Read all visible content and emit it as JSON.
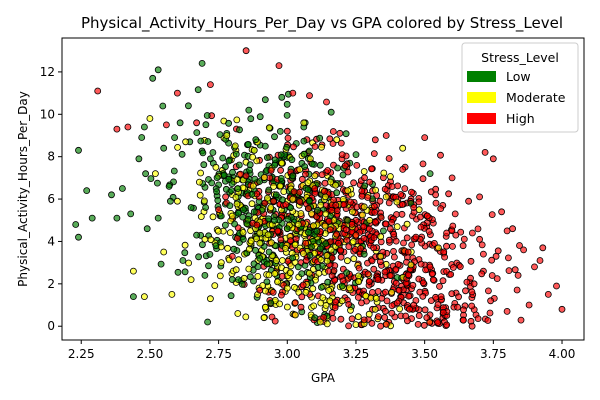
{
  "chart_data": {
    "type": "scatter",
    "title": "Physical_Activity_Hours_Per_Day vs GPA colored by Stress_Level",
    "xlabel": "GPA",
    "ylabel": "Physical_Activity_Hours_Per_Day",
    "xlim": [
      2.18,
      4.08
    ],
    "ylim": [
      -0.65,
      13.6
    ],
    "xticks": [
      2.25,
      2.5,
      2.75,
      3.0,
      3.25,
      3.5,
      3.75,
      4.0
    ],
    "xtick_labels": [
      "2.25",
      "2.50",
      "2.75",
      "3.00",
      "3.25",
      "3.50",
      "3.75",
      "4.00"
    ],
    "yticks": [
      0,
      2,
      4,
      6,
      8,
      10,
      12
    ],
    "ytick_labels": [
      "0",
      "2",
      "4",
      "6",
      "8",
      "10",
      "12"
    ],
    "grid": false,
    "legend": {
      "title": "Stress_Level",
      "placement": "top-right",
      "entries": [
        {
          "label": "Low",
          "color": "#008000"
        },
        {
          "label": "Moderate",
          "color": "#ffff00"
        },
        {
          "label": "High",
          "color": "#ff0000"
        }
      ]
    },
    "series": [
      {
        "name": "Low",
        "color": "#008000",
        "points": [
          [
            2.24,
            8.3
          ],
          [
            2.23,
            4.8
          ],
          [
            2.24,
            4.2
          ],
          [
            2.27,
            6.4
          ],
          [
            2.29,
            5.1
          ],
          [
            2.36,
            6.2
          ],
          [
            2.38,
            5.1
          ],
          [
            2.4,
            6.5
          ],
          [
            2.43,
            5.3
          ],
          [
            2.44,
            1.4
          ],
          [
            2.46,
            7.9
          ],
          [
            2.48,
            9.4
          ],
          [
            2.49,
            4.6
          ],
          [
            2.51,
            11.7
          ],
          [
            2.53,
            12.1
          ],
          [
            2.53,
            5.1
          ],
          [
            2.55,
            8.4
          ],
          [
            2.57,
            6.6
          ],
          [
            2.59,
            8.9
          ],
          [
            2.61,
            9.6
          ],
          [
            2.62,
            3.1
          ],
          [
            2.64,
            10.4
          ],
          [
            2.65,
            5.6
          ],
          [
            2.67,
            4.3
          ],
          [
            2.69,
            12.4
          ],
          [
            2.7,
            2.4
          ],
          [
            2.71,
            0.2
          ],
          [
            2.72,
            7.9
          ],
          [
            2.74,
            3.8
          ],
          [
            2.76,
            5.2
          ],
          [
            2.78,
            9.1
          ],
          [
            2.8,
            2.2
          ],
          [
            2.82,
            6.5
          ],
          [
            2.84,
            4.1
          ],
          [
            2.86,
            10.2
          ],
          [
            2.88,
            5.4
          ],
          [
            2.9,
            3.2
          ],
          [
            2.92,
            8.5
          ],
          [
            2.94,
            1.1
          ],
          [
            2.96,
            6.2
          ],
          [
            2.98,
            10.8
          ],
          [
            3.0,
            4.6
          ],
          [
            3.02,
            7.1
          ],
          [
            3.04,
            2.8
          ],
          [
            3.06,
            9.4
          ],
          [
            3.08,
            5.9
          ],
          [
            3.1,
            0.4
          ],
          [
            3.12,
            7.6
          ],
          [
            3.14,
            3.9
          ],
          [
            3.16,
            10.1
          ],
          [
            3.18,
            6.3
          ],
          [
            3.2,
            1.9
          ],
          [
            3.22,
            5.0
          ],
          [
            3.25,
            8.1
          ],
          [
            3.28,
            3.4
          ],
          [
            3.31,
            6.7
          ],
          [
            3.35,
            4.5
          ],
          [
            3.4,
            2.3
          ],
          [
            3.45,
            5.8
          ],
          [
            3.52,
            7.2
          ]
        ]
      },
      {
        "name": "Moderate",
        "color": "#ffff00",
        "points": [
          [
            2.44,
            2.6
          ],
          [
            2.48,
            1.4
          ],
          [
            2.5,
            9.8
          ],
          [
            2.52,
            7.2
          ],
          [
            2.55,
            3.5
          ],
          [
            2.58,
            1.5
          ],
          [
            2.6,
            5.9
          ],
          [
            2.63,
            8.7
          ],
          [
            2.65,
            2.2
          ],
          [
            2.68,
            6.8
          ],
          [
            2.7,
            4.1
          ],
          [
            2.72,
            1.3
          ],
          [
            2.74,
            7.5
          ],
          [
            2.76,
            3.0
          ],
          [
            2.78,
            9.0
          ],
          [
            2.8,
            5.2
          ],
          [
            2.82,
            0.6
          ],
          [
            2.84,
            6.9
          ],
          [
            2.86,
            2.7
          ],
          [
            2.88,
            8.3
          ],
          [
            2.9,
            4.4
          ],
          [
            2.92,
            0.9
          ],
          [
            2.94,
            5.6
          ],
          [
            2.96,
            3.1
          ],
          [
            2.98,
            7.7
          ],
          [
            3.0,
            1.8
          ],
          [
            3.02,
            6.0
          ],
          [
            3.04,
            4.8
          ],
          [
            3.06,
            9.6
          ],
          [
            3.08,
            2.5
          ],
          [
            3.1,
            7.1
          ],
          [
            3.12,
            0.2
          ],
          [
            3.14,
            5.3
          ],
          [
            3.16,
            3.6
          ],
          [
            3.18,
            8.8
          ],
          [
            3.2,
            1.2
          ],
          [
            3.22,
            6.4
          ],
          [
            3.24,
            4.0
          ],
          [
            3.26,
            2.1
          ],
          [
            3.28,
            7.3
          ],
          [
            3.3,
            5.0
          ],
          [
            3.32,
            0.8
          ],
          [
            3.34,
            3.3
          ],
          [
            3.36,
            6.1
          ],
          [
            3.38,
            1.6
          ],
          [
            3.4,
            4.7
          ],
          [
            3.42,
            8.4
          ],
          [
            3.45,
            2.9
          ],
          [
            3.48,
            5.5
          ],
          [
            3.55,
            3.7
          ]
        ]
      },
      {
        "name": "High",
        "color": "#ff0000",
        "points": [
          [
            2.31,
            11.1
          ],
          [
            2.38,
            9.3
          ],
          [
            2.42,
            9.4
          ],
          [
            2.56,
            9.5
          ],
          [
            2.6,
            11.0
          ],
          [
            2.67,
            9.6
          ],
          [
            2.72,
            11.4
          ],
          [
            2.85,
            13.0
          ],
          [
            2.97,
            12.3
          ],
          [
            3.02,
            11.0
          ],
          [
            2.75,
            5.5
          ],
          [
            2.8,
            3.3
          ],
          [
            2.85,
            7.1
          ],
          [
            2.9,
            1.7
          ],
          [
            2.95,
            5.9
          ],
          [
            3.0,
            9.2
          ],
          [
            3.05,
            0.9
          ],
          [
            3.1,
            6.5
          ],
          [
            3.15,
            2.6
          ],
          [
            3.2,
            8.1
          ],
          [
            3.25,
            4.3
          ],
          [
            3.28,
            0.3
          ],
          [
            3.3,
            6.8
          ],
          [
            3.33,
            2.2
          ],
          [
            3.36,
            9.0
          ],
          [
            3.38,
            4.9
          ],
          [
            3.4,
            1.1
          ],
          [
            3.42,
            7.4
          ],
          [
            3.44,
            3.5
          ],
          [
            3.46,
            5.6
          ],
          [
            3.48,
            0.5
          ],
          [
            3.5,
            8.9
          ],
          [
            3.52,
            2.8
          ],
          [
            3.54,
            6.2
          ],
          [
            3.56,
            1.4
          ],
          [
            3.58,
            4.4
          ],
          [
            3.6,
            7.0
          ],
          [
            3.62,
            0.9
          ],
          [
            3.64,
            3.8
          ],
          [
            3.66,
            5.9
          ],
          [
            3.68,
            2.0
          ],
          [
            3.7,
            4.1
          ],
          [
            3.72,
            8.2
          ],
          [
            3.74,
            1.2
          ],
          [
            3.76,
            3.3
          ],
          [
            3.78,
            5.4
          ],
          [
            3.8,
            0.7
          ],
          [
            3.82,
            4.6
          ],
          [
            3.84,
            2.4
          ],
          [
            3.86,
            3.6
          ],
          [
            3.88,
            1.0
          ],
          [
            3.9,
            2.8
          ],
          [
            3.92,
            3.1
          ],
          [
            3.95,
            1.5
          ],
          [
            4.0,
            0.8
          ],
          [
            3.93,
            3.7
          ],
          [
            3.98,
            1.9
          ],
          [
            3.7,
            6.1
          ],
          [
            3.75,
            7.9
          ],
          [
            3.8,
            4.5
          ]
        ]
      }
    ],
    "cloud": {
      "note": "dense overlapping points",
      "points": []
    }
  }
}
